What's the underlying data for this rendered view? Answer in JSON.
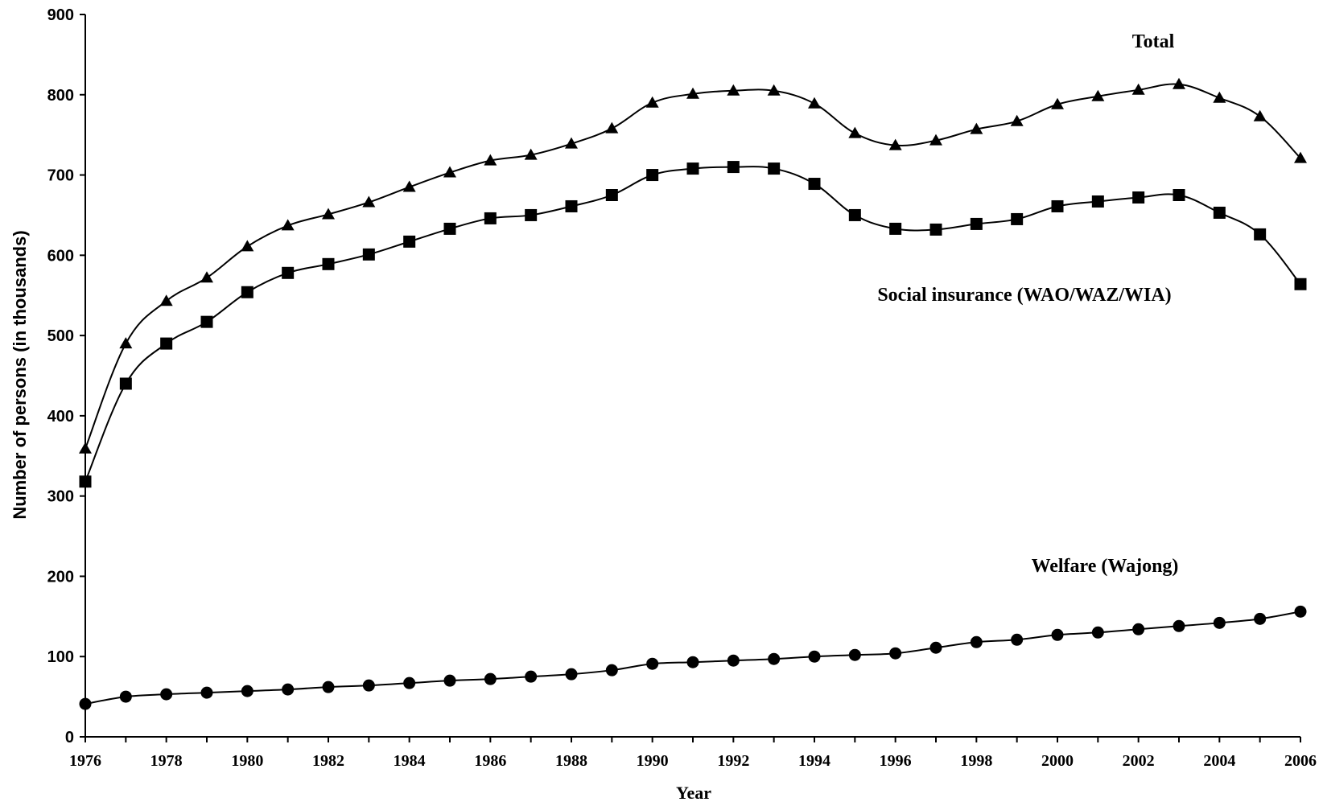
{
  "chart_data": {
    "type": "line",
    "title": "",
    "xlabel": "Year",
    "ylabel": "Number of persons (in thousands)",
    "ylim": [
      0,
      900
    ],
    "xlim": [
      1976,
      2006
    ],
    "yticks": [
      "0",
      "100",
      "200",
      "300",
      "400",
      "500",
      "600",
      "700",
      "800",
      "900"
    ],
    "xticks": [
      "1976",
      "1978",
      "1980",
      "1982",
      "1984",
      "1986",
      "1988",
      "1990",
      "1992",
      "1994",
      "1996",
      "1998",
      "2000",
      "2002",
      "2004",
      "2006"
    ],
    "grid": false,
    "legend": "none",
    "x": [
      1976,
      1977,
      1978,
      1979,
      1980,
      1981,
      1982,
      1983,
      1984,
      1985,
      1986,
      1987,
      1988,
      1989,
      1990,
      1991,
      1992,
      1993,
      1994,
      1995,
      1996,
      1997,
      1998,
      1999,
      2000,
      2001,
      2002,
      2003,
      2004,
      2005,
      2006
    ],
    "series": [
      {
        "name": "Total",
        "marker": "triangle",
        "values": [
          359,
          490,
          543,
          572,
          611,
          637,
          651,
          666,
          685,
          703,
          718,
          725,
          739,
          758,
          790,
          801,
          805,
          805,
          789,
          752,
          737,
          743,
          757,
          767,
          788,
          798,
          806,
          813,
          796,
          773,
          721
        ]
      },
      {
        "name": "Social insurance (WAO/WAZ/WIA)",
        "marker": "square",
        "values": [
          318,
          440,
          490,
          517,
          554,
          578,
          589,
          601,
          617,
          633,
          646,
          650,
          661,
          675,
          700,
          708,
          710,
          708,
          689,
          650,
          633,
          632,
          639,
          645,
          661,
          667,
          672,
          675,
          653,
          626,
          564
        ]
      },
      {
        "name": "Welfare (Wajong)",
        "marker": "circle",
        "values": [
          41,
          50,
          53,
          55,
          57,
          59,
          62,
          64,
          67,
          70,
          72,
          75,
          78,
          83,
          91,
          93,
          95,
          97,
          100,
          102,
          104,
          111,
          118,
          121,
          127,
          130,
          134,
          138,
          142,
          147,
          156
        ]
      }
    ]
  }
}
